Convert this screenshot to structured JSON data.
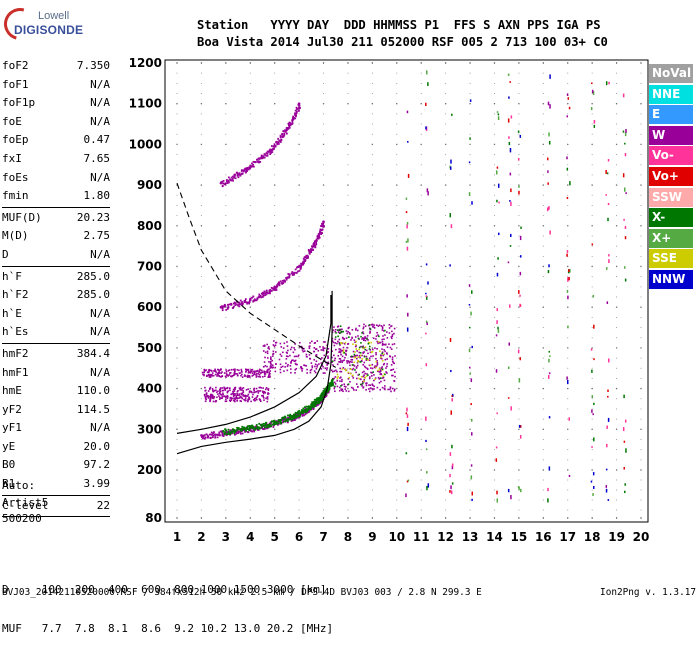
{
  "logo": {
    "line1": "Lowell",
    "line2": "DIGISONDE"
  },
  "header": {
    "line1": "Station   YYYY DAY  DDD HHMMSS P1  FFS S AXN PPS IGA PS",
    "line2": "Boa Vista 2014 Jul30 211 052000 RSF 005 2 713 100 03+ C0"
  },
  "params": [
    {
      "name": "foF2",
      "value": "7.350"
    },
    {
      "name": "foF1",
      "value": "N/A"
    },
    {
      "name": "foF1p",
      "value": "N/A"
    },
    {
      "name": "foE",
      "value": "N/A"
    },
    {
      "name": "foEp",
      "value": "0.47"
    },
    {
      "name": "fxI",
      "value": "7.65"
    },
    {
      "name": "foEs",
      "value": "N/A"
    },
    {
      "name": "fmin",
      "value": "1.80"
    },
    {
      "sep": true
    },
    {
      "name": "MUF(D)",
      "value": "20.23"
    },
    {
      "name": "M(D)",
      "value": "2.75"
    },
    {
      "name": "D",
      "value": "N/A"
    },
    {
      "sep": true
    },
    {
      "name": "h`F",
      "value": "285.0"
    },
    {
      "name": "h`F2",
      "value": "285.0"
    },
    {
      "name": "h`E",
      "value": "N/A"
    },
    {
      "name": "h`Es",
      "value": "N/A"
    },
    {
      "sep": true
    },
    {
      "name": "hmF2",
      "value": "384.4"
    },
    {
      "name": "hmF1",
      "value": "N/A"
    },
    {
      "name": "hmE",
      "value": "110.0"
    },
    {
      "name": "yF2",
      "value": "114.5"
    },
    {
      "name": "yF1",
      "value": "N/A"
    },
    {
      "name": "yE",
      "value": "20.0"
    },
    {
      "name": "B0",
      "value": "97.2"
    },
    {
      "name": "B1",
      "value": "3.99"
    },
    {
      "sep": true
    },
    {
      "name": "C-level",
      "value": "22"
    },
    {
      "sep": true
    }
  ],
  "auto": {
    "l1": "Auto:",
    "l2": "Artist5",
    "l3": "500200"
  },
  "muf_table": {
    "d_row": "D     100  200  400  600  800 1000 1500 3000 [km]",
    "muf_row": "MUF   7.7  7.8  8.1  8.6  9.2 10.2 13.0 20.2 [MHz]"
  },
  "footer": {
    "left": "BVJ03_20142110520000.RSF / 384fx512h 50 kHz 2.5 km / DPS-4D BVJ03 003 / 2.8 N 299.3 E",
    "right": "Ion2Png v. 1.3.17"
  },
  "legend": [
    {
      "label": "NoVal",
      "color": "#a0a0a0"
    },
    {
      "label": "NNE",
      "color": "#00e0e0"
    },
    {
      "label": "E",
      "color": "#3399ff"
    },
    {
      "label": "W",
      "color": "#990099"
    },
    {
      "label": "Vo-",
      "color": "#ff3399"
    },
    {
      "label": "Vo+",
      "color": "#e00000"
    },
    {
      "label": "SSW",
      "color": "#ffaaaa"
    },
    {
      "label": "X-",
      "color": "#007700"
    },
    {
      "label": "X+",
      "color": "#55aa44"
    },
    {
      "label": "SSE",
      "color": "#cccc00"
    },
    {
      "label": "NNW",
      "color": "#0000cc"
    }
  ],
  "chart_data": {
    "type": "scatter",
    "x_ticks": [
      "1",
      "2",
      "3",
      "4",
      "5",
      "6",
      "7",
      "8",
      "9",
      "10",
      "11",
      "12",
      "13",
      "14",
      "15",
      "16",
      "17",
      "18",
      "19",
      "20"
    ],
    "y_ticks": [
      "80",
      "200",
      "300",
      "400",
      "500",
      "600",
      "700",
      "800",
      "900",
      "1000",
      "1100",
      "1200"
    ],
    "xlim": [
      1,
      20
    ],
    "ylim": [
      80,
      1200
    ],
    "grid": true,
    "series": [
      {
        "name": "o-trace F2",
        "color": "#990099",
        "points": [
          [
            2.0,
            285
          ],
          [
            3.0,
            292
          ],
          [
            4.0,
            302
          ],
          [
            5.0,
            316
          ],
          [
            5.8,
            332
          ],
          [
            6.3,
            348
          ],
          [
            6.7,
            366
          ],
          [
            7.0,
            385
          ],
          [
            7.2,
            405
          ]
        ]
      },
      {
        "name": "x-trace F2",
        "color": "#007700",
        "points": [
          [
            2.9,
            295
          ],
          [
            4.0,
            305
          ],
          [
            5.0,
            318
          ],
          [
            5.8,
            336
          ],
          [
            6.4,
            356
          ],
          [
            6.8,
            376
          ],
          [
            7.1,
            398
          ],
          [
            7.35,
            420
          ]
        ]
      },
      {
        "name": "2nd hop o",
        "color": "#990099",
        "points": [
          [
            2.8,
            600
          ],
          [
            4.0,
            618
          ],
          [
            5.0,
            650
          ],
          [
            6.0,
            700
          ],
          [
            6.6,
            755
          ],
          [
            7.0,
            810
          ]
        ]
      },
      {
        "name": "3rd hop o",
        "color": "#990099",
        "points": [
          [
            2.8,
            905
          ],
          [
            3.8,
            940
          ],
          [
            4.8,
            985
          ],
          [
            5.5,
            1040
          ],
          [
            6.0,
            1100
          ]
        ]
      }
    ],
    "profile_curve": [
      [
        1,
        240
      ],
      [
        2,
        258
      ],
      [
        3,
        268
      ],
      [
        4,
        276
      ],
      [
        5,
        285
      ],
      [
        5.8,
        300
      ],
      [
        6.4,
        320
      ],
      [
        6.9,
        355
      ],
      [
        7.15,
        400
      ],
      [
        7.3,
        460
      ],
      [
        7.35,
        540
      ],
      [
        7.35,
        640
      ]
    ],
    "model_curve": [
      [
        1,
        290
      ],
      [
        2,
        300
      ],
      [
        3,
        312
      ],
      [
        4,
        330
      ],
      [
        5,
        355
      ],
      [
        6,
        390
      ],
      [
        6.7,
        430
      ],
      [
        7.1,
        480
      ],
      [
        7.3,
        560
      ],
      [
        7.3,
        630
      ]
    ],
    "dashed_curve": [
      [
        1,
        905
      ],
      [
        1.5,
        820
      ],
      [
        2,
        740
      ],
      [
        3,
        640
      ],
      [
        4,
        585
      ],
      [
        5,
        545
      ],
      [
        6,
        505
      ],
      [
        7,
        468
      ],
      [
        7.5,
        452
      ]
    ]
  }
}
